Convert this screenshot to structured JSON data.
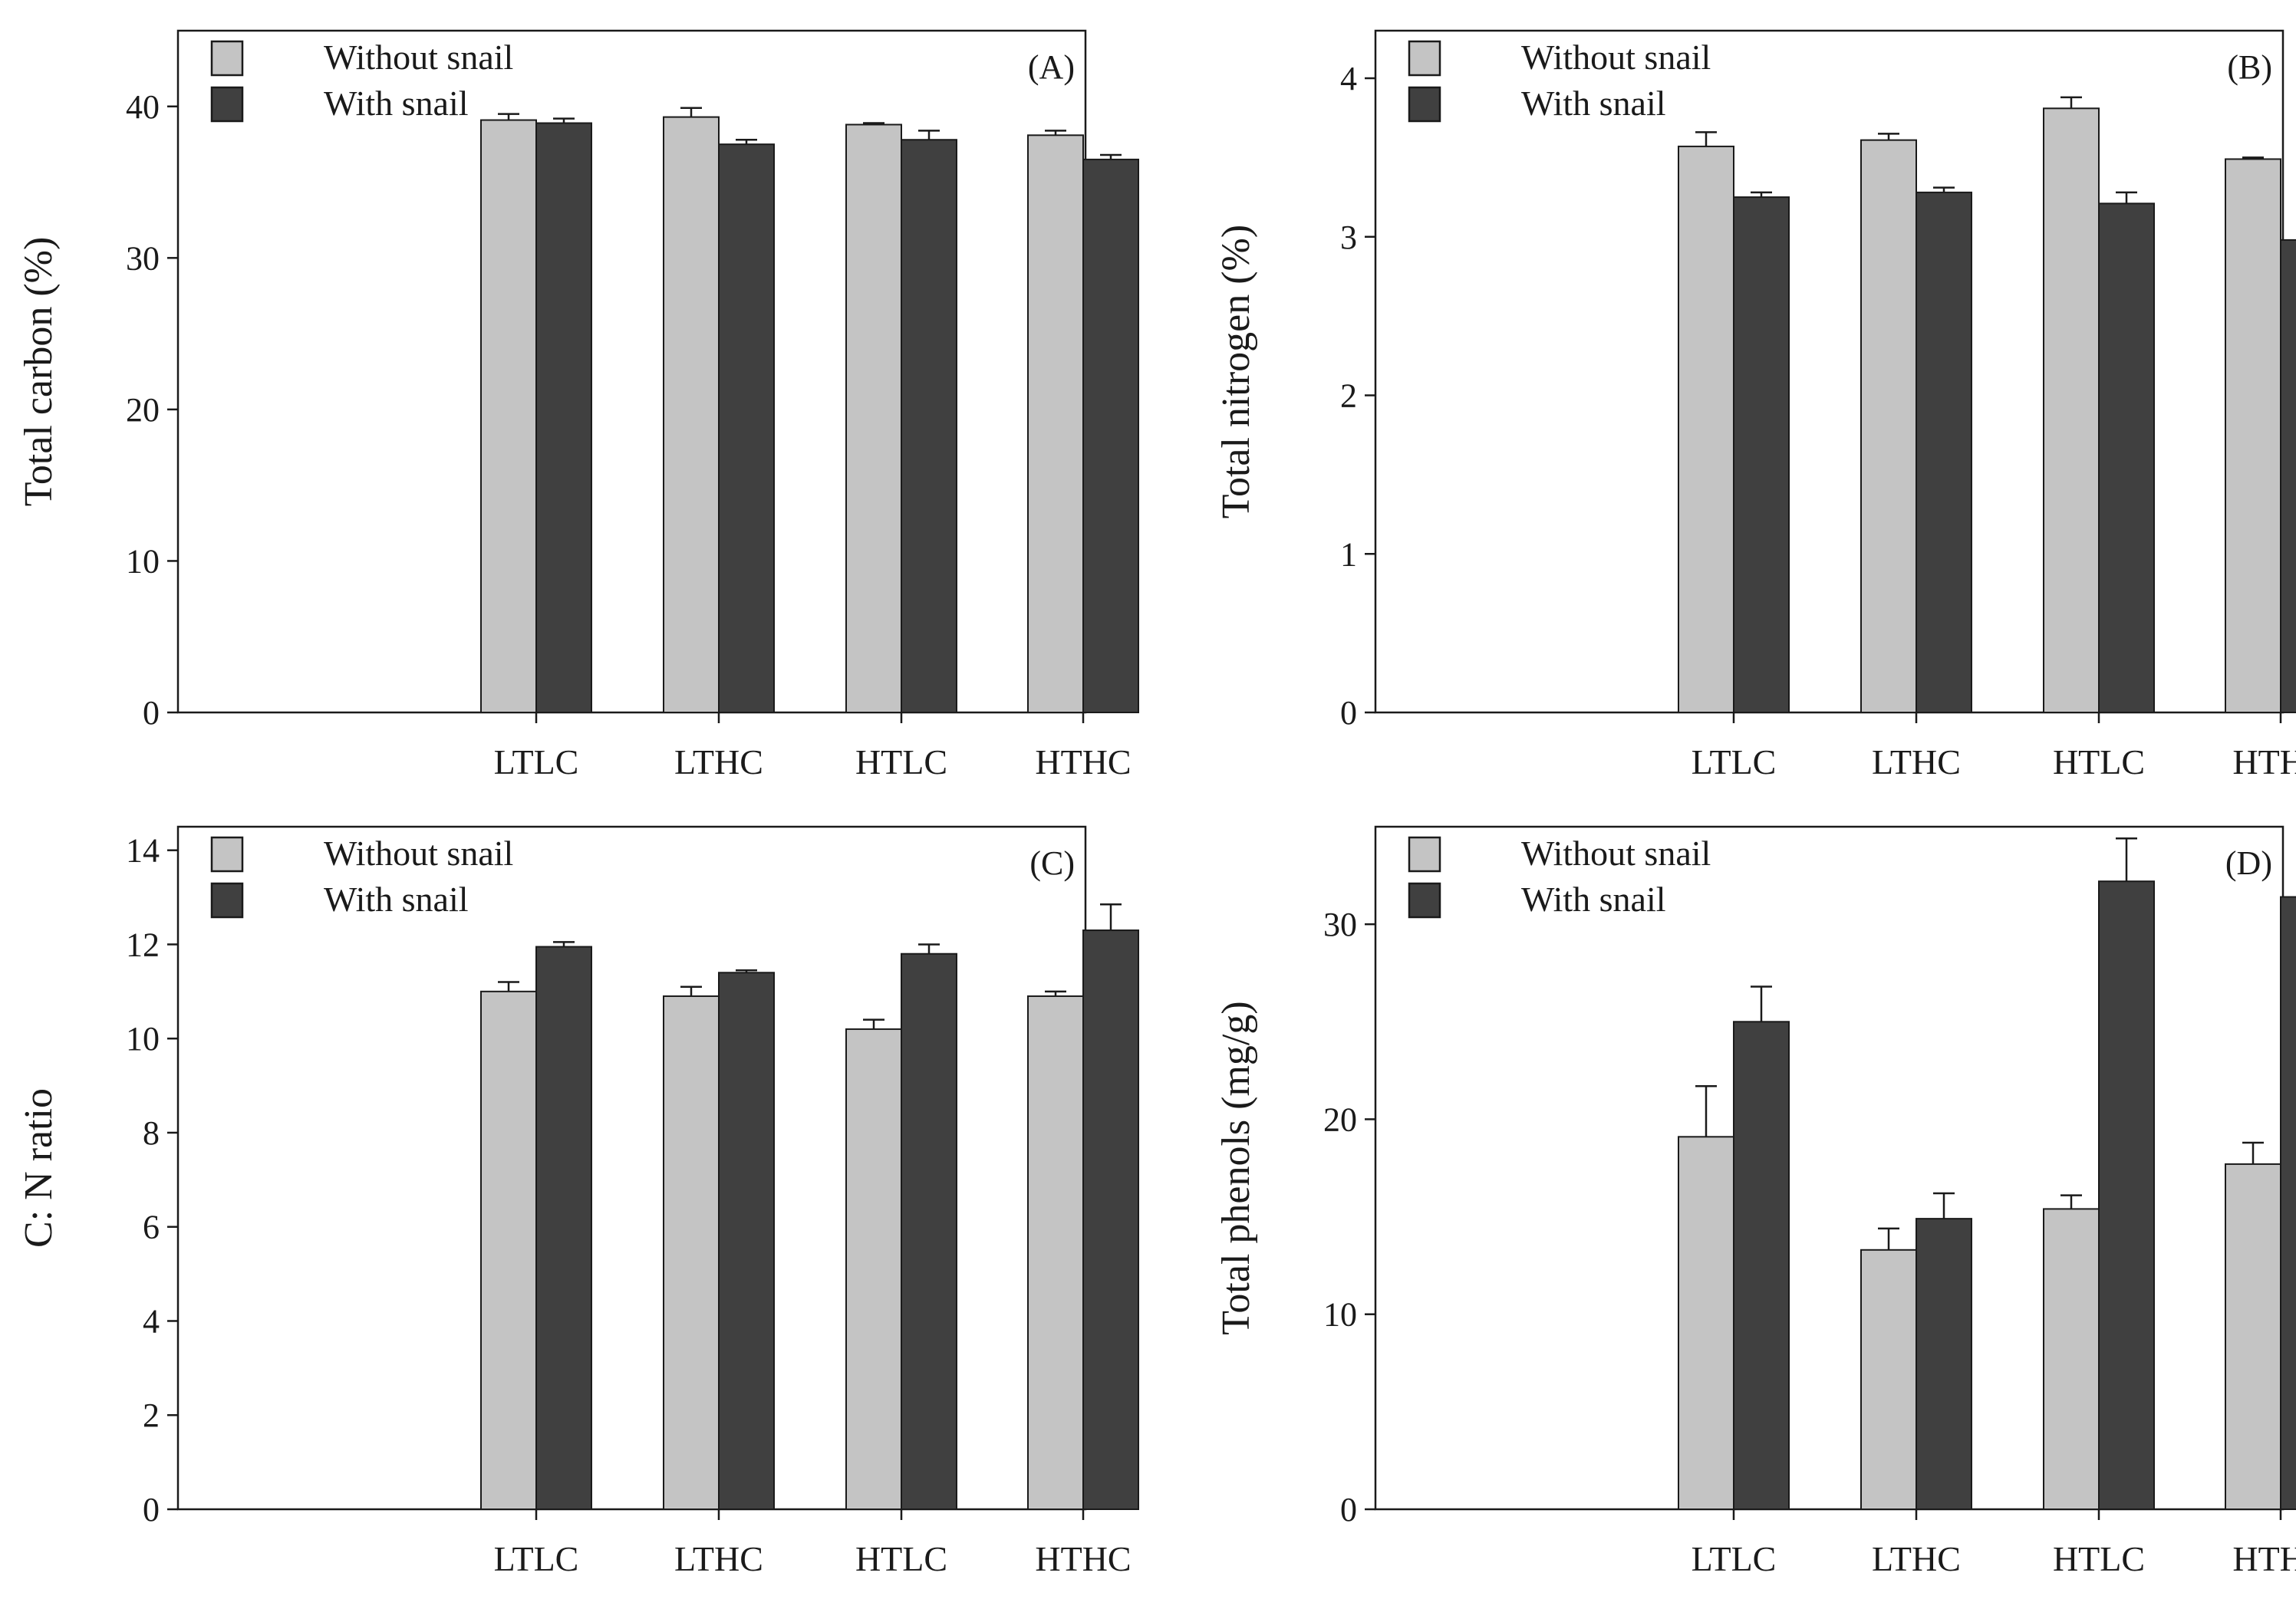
{
  "colors": {
    "without_snail": "#c4c4c4",
    "with_snail": "#404040",
    "axis": "#1a1a1a",
    "background": "#ffffff"
  },
  "chart_data": [
    {
      "type": "bar",
      "panel": "(A)",
      "ylabel": "Total carbon (%)",
      "xlabel": "",
      "categories": [
        "LTLC",
        "LTHC",
        "HTLC",
        "HTHC"
      ],
      "ylim": [
        0,
        45
      ],
      "yticks": [
        0,
        10,
        20,
        30,
        40
      ],
      "grid": false,
      "legend": "top-left",
      "series": [
        {
          "name": "Without snail",
          "values": [
            39.1,
            39.3,
            38.8,
            38.1
          ],
          "errors": [
            0.4,
            0.6,
            0.1,
            0.3
          ]
        },
        {
          "name": "With snail",
          "values": [
            38.9,
            37.5,
            37.8,
            36.5
          ],
          "errors": [
            0.3,
            0.3,
            0.6,
            0.3
          ]
        }
      ]
    },
    {
      "type": "bar",
      "panel": "(B)",
      "ylabel": "Total nitrogen (%)",
      "xlabel": "",
      "categories": [
        "LTLC",
        "LTHC",
        "HTLC",
        "HTHC"
      ],
      "ylim": [
        0,
        4.3
      ],
      "yticks": [
        0,
        1,
        2,
        3,
        4
      ],
      "grid": false,
      "legend": "top-left",
      "series": [
        {
          "name": "Without snail",
          "values": [
            3.57,
            3.61,
            3.81,
            3.49
          ],
          "errors": [
            0.09,
            0.04,
            0.07,
            0.01
          ]
        },
        {
          "name": "With snail",
          "values": [
            3.25,
            3.28,
            3.21,
            2.98
          ],
          "errors": [
            0.03,
            0.03,
            0.07,
            0.12
          ]
        }
      ]
    },
    {
      "type": "bar",
      "panel": "(C)",
      "ylabel": "C: N ratio",
      "xlabel": "",
      "categories": [
        "LTLC",
        "LTHC",
        "HTLC",
        "HTHC"
      ],
      "ylim": [
        0,
        14.5
      ],
      "yticks": [
        0,
        2,
        4,
        6,
        8,
        10,
        12,
        14
      ],
      "grid": false,
      "legend": "top-left",
      "series": [
        {
          "name": "Without snail",
          "values": [
            11.0,
            10.9,
            10.2,
            10.9
          ],
          "errors": [
            0.2,
            0.2,
            0.2,
            0.1
          ]
        },
        {
          "name": "With snail",
          "values": [
            11.95,
            11.4,
            11.8,
            12.3
          ],
          "errors": [
            0.1,
            0.05,
            0.2,
            0.55
          ]
        }
      ]
    },
    {
      "type": "bar",
      "panel": "(D)",
      "ylabel": "Total phenols (mg/g)",
      "xlabel": "",
      "categories": [
        "LTLC",
        "LTHC",
        "HTLC",
        "HTHC"
      ],
      "ylim": [
        0,
        35
      ],
      "yticks": [
        0,
        10,
        20,
        30
      ],
      "grid": false,
      "legend": "top-left",
      "series": [
        {
          "name": "Without snail",
          "values": [
            19.1,
            13.3,
            15.4,
            17.7
          ],
          "errors": [
            2.6,
            1.1,
            0.7,
            1.1
          ]
        },
        {
          "name": "With snail",
          "values": [
            25.0,
            14.9,
            32.2,
            31.4
          ],
          "errors": [
            1.8,
            1.3,
            2.2,
            1.3
          ]
        }
      ]
    }
  ]
}
